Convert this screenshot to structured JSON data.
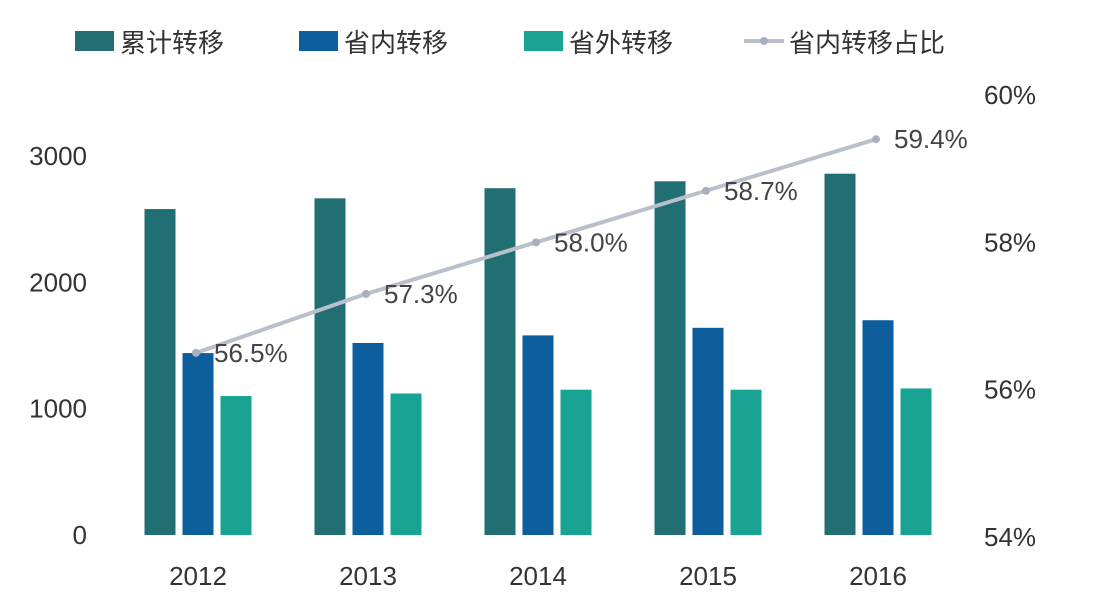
{
  "chart_data": {
    "type": "bar",
    "categories": [
      "2012",
      "2013",
      "2014",
      "2015",
      "2016"
    ],
    "series": [
      {
        "name": "累计转移",
        "type": "bar",
        "axis": "left",
        "color": "#216e73",
        "values": [
          2580,
          2665,
          2745,
          2800,
          2860
        ]
      },
      {
        "name": "省内转移",
        "type": "bar",
        "axis": "left",
        "color": "#0d5e9c",
        "values": [
          1440,
          1520,
          1580,
          1640,
          1700
        ]
      },
      {
        "name": "省外转移",
        "type": "bar",
        "axis": "left",
        "color": "#18a392",
        "values": [
          1100,
          1120,
          1150,
          1150,
          1160
        ]
      },
      {
        "name": "省内转移占比",
        "type": "line",
        "axis": "right",
        "color": "#b9c0cc",
        "values": [
          56.5,
          57.3,
          58.0,
          58.7,
          59.4
        ],
        "labels": [
          "56.5%",
          "57.3%",
          "58.0%",
          "58.7%",
          "59.4%"
        ]
      }
    ],
    "left_axis": {
      "ylim": [
        0,
        3000
      ],
      "ticks": [
        "0",
        "1000",
        "2000",
        "3000"
      ]
    },
    "right_axis": {
      "ylim": [
        54,
        60
      ],
      "ticks": [
        "54%",
        "56%",
        "58%",
        "60%"
      ]
    },
    "legend_position": "top",
    "grid": false
  }
}
